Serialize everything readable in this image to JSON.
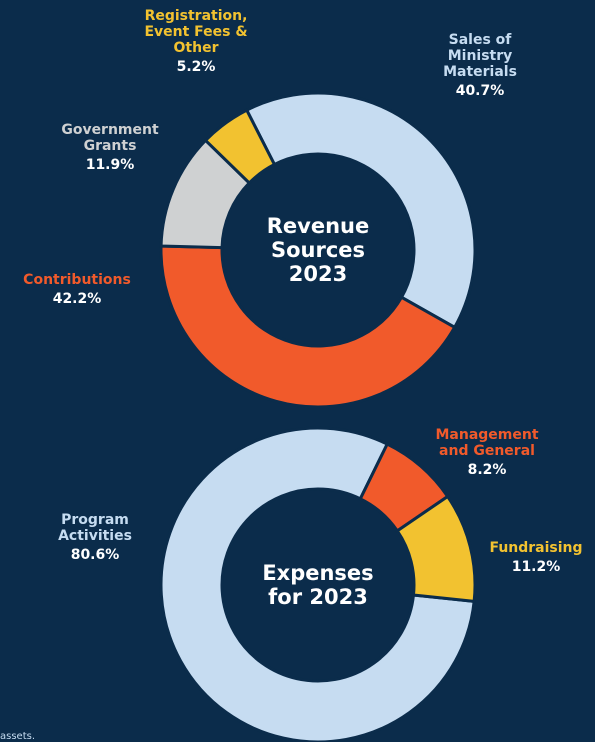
{
  "chart_data": [
    {
      "type": "donut",
      "center_label": "Revenue Sources 2023",
      "categories": [
        "Sales of Ministry Materials",
        "Contributions",
        "Government Grants",
        "Registration, Event Fees & Other"
      ],
      "values": [
        40.7,
        42.2,
        11.9,
        5.2
      ],
      "value_labels": [
        "40.7%",
        "42.2%",
        "11.9%",
        "5.2%"
      ],
      "colors": [
        "#c6dcf1",
        "#f15a2b",
        "#cfd1d2",
        "#f2c230"
      ]
    },
    {
      "type": "donut",
      "center_label": "Expenses for 2023",
      "categories": [
        "Program Activities",
        "Management and General",
        "Fundraising"
      ],
      "values": [
        80.6,
        8.2,
        11.2
      ],
      "value_labels": [
        "80.6%",
        "8.2%",
        "11.2%"
      ],
      "colors": [
        "#c6dcf1",
        "#f15a2b",
        "#f2c230"
      ]
    }
  ],
  "footnote": "assets."
}
